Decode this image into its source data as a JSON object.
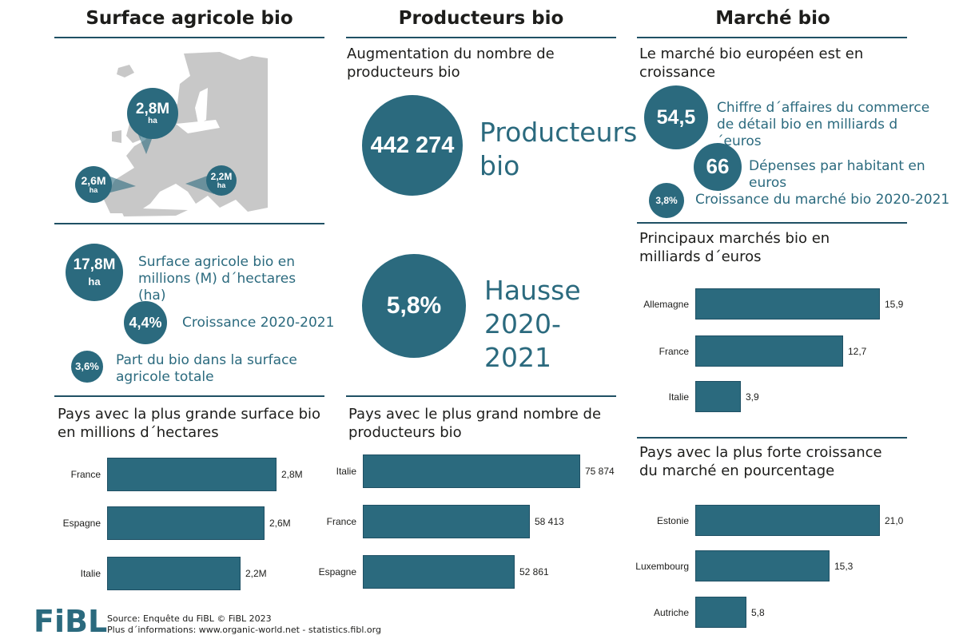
{
  "columns": {
    "surface": {
      "title": "Surface agricole bio"
    },
    "producteurs": {
      "title": "Producteurs bio"
    },
    "marche": {
      "title": "Marché bio"
    }
  },
  "map": {
    "pins": [
      {
        "value": "2,8M",
        "unit": "ha",
        "country": "France"
      },
      {
        "value": "2,6M",
        "unit": "ha",
        "country": "Espagne"
      },
      {
        "value": "2,2M",
        "unit": "ha",
        "country": "Italie"
      }
    ]
  },
  "surface_stats": [
    {
      "value": "17,8M",
      "unit": "ha",
      "label": "Surface agricole bio en millions (M) d´hectares (ha)"
    },
    {
      "value": "4,4%",
      "label": "Croissance 2020-2021"
    },
    {
      "value": "3,6%",
      "label": "Part du bio dans la surface agricole totale"
    }
  ],
  "producteurs_intro": "Augmentation du nombre de producteurs bio",
  "producteurs_stats": [
    {
      "value": "442 274",
      "label": "Producteurs bio"
    },
    {
      "value": "5,8%",
      "label": "Hausse 2020-2021"
    }
  ],
  "marche_intro": "Le marché bio européen est en croissance",
  "marche_stats": [
    {
      "value": "54,5",
      "label": "Chiffre d´affaires du commerce de détail bio en milliards d´euros"
    },
    {
      "value": "66",
      "label": "Dépenses par habitant en euros"
    },
    {
      "value": "3,8%",
      "label": "Croissance du marché bio 2020-2021"
    }
  ],
  "chart_data": [
    {
      "type": "bar",
      "orientation": "horizontal",
      "title": "Pays avec la plus grande surface bio en millions d´hectares",
      "categories": [
        "France",
        "Espagne",
        "Italie"
      ],
      "values": [
        2.8,
        2.6,
        2.2
      ],
      "labels": [
        "2,8M",
        "2,6M",
        "2,2M"
      ],
      "xlim": [
        0,
        2.8
      ],
      "color": "#2b6a7e"
    },
    {
      "type": "bar",
      "orientation": "horizontal",
      "title": "Pays avec le plus grand nombre de producteurs bio",
      "categories": [
        "Italie",
        "France",
        "Espagne"
      ],
      "values": [
        75874,
        58413,
        52861
      ],
      "labels": [
        "75 874",
        "58 413",
        "52 861"
      ],
      "xlim": [
        0,
        75874
      ],
      "color": "#2b6a7e"
    },
    {
      "type": "bar",
      "orientation": "horizontal",
      "title": "Principaux marchés bio en milliards d´euros",
      "categories": [
        "Allemagne",
        "France",
        "Italie"
      ],
      "values": [
        15.9,
        12.7,
        3.9
      ],
      "labels": [
        "15,9",
        "12,7",
        "3,9"
      ],
      "xlim": [
        0,
        15.9
      ],
      "color": "#2b6a7e"
    },
    {
      "type": "bar",
      "orientation": "horizontal",
      "title": "Pays avec la plus forte croissance du marché en pourcentage",
      "categories": [
        "Estonie",
        "Luxembourg",
        "Autriche"
      ],
      "values": [
        21.0,
        15.3,
        5.8
      ],
      "labels": [
        "21,0",
        "15,3",
        "5,8"
      ],
      "xlim": [
        0,
        21.0
      ],
      "color": "#2b6a7e"
    }
  ],
  "footer": {
    "logo": "FiBL",
    "source": "Source: Enquête du FiBL © FiBL 2023",
    "more": "Plus d´informations: www.organic-world.net - statistics.fibl.org"
  }
}
